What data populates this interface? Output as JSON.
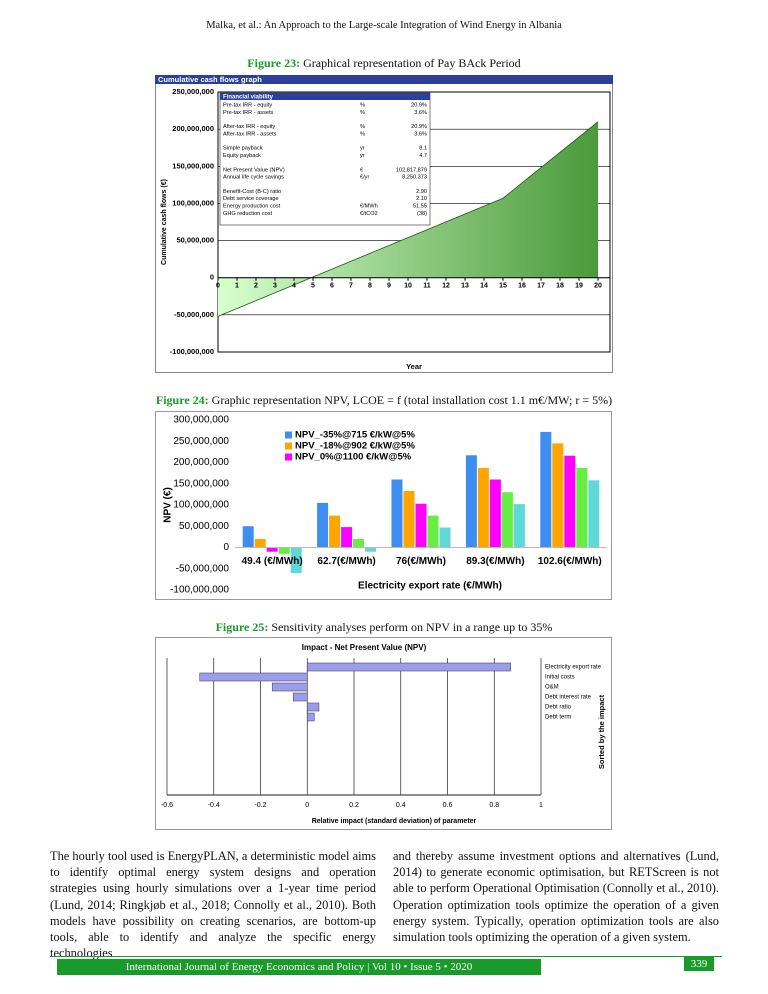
{
  "header": {
    "running_title": "Malka, et al.: An Approach to the Large-scale Integration of Wind Energy in Albania"
  },
  "figures": [
    {
      "label": "Figure 23:",
      "text": "Graphical representation of Pay BAck Period"
    },
    {
      "label": "Figure 24:",
      "text": "Graphic representation NPV, LCOE = f (total installation cost 1.1 m€/MW; r = 5%)"
    },
    {
      "label": "Figure 25:",
      "text": "Sensitivity analyses perform on NPV in a range up to 35%"
    }
  ],
  "chart_data": [
    {
      "type": "area",
      "title": "Cumulative cash flows graph",
      "x_label": "Year",
      "y_label": "Cumulative cash flows (€)",
      "x": [
        0,
        1,
        2,
        3,
        4,
        5,
        6,
        7,
        8,
        9,
        10,
        11,
        12,
        13,
        14,
        15,
        16,
        17,
        18,
        19,
        20
      ],
      "values": [
        -52000000,
        -41400000,
        -30800000,
        -20200000,
        -9600000,
        1000000,
        11600000,
        22200000,
        32800000,
        43400000,
        54000000,
        64600000,
        75200000,
        85800000,
        96400000,
        107000000,
        127600000,
        148200000,
        168800000,
        189400000,
        210000000
      ],
      "color": "#4a9a3a",
      "xlim": [
        0,
        20
      ],
      "xticks": [
        0,
        1,
        2,
        3,
        4,
        5,
        6,
        7,
        8,
        9,
        10,
        11,
        12,
        13,
        14,
        15,
        16,
        17,
        18,
        19,
        20
      ],
      "ylim": [
        -100000000,
        250000000
      ],
      "yticks": [
        {
          "value": -100000000,
          "label": "-100,000,000"
        },
        {
          "value": -50000000,
          "label": "-50,000,000"
        },
        0,
        {
          "value": 50000000,
          "label": "50,000,000"
        },
        {
          "value": 100000000,
          "label": "100,000,000"
        },
        {
          "value": 150000000,
          "label": "150,000,000"
        },
        {
          "value": 200000000,
          "label": "200,000,000"
        },
        {
          "value": 250000000,
          "label": "250,000,000"
        }
      ],
      "inset": {
        "title": "Financial viability",
        "rows": [
          {
            "label": "Pre-tax IRR - equity",
            "unit": "%",
            "value": "20.9%"
          },
          {
            "label": "Pre-tax IRR - assets",
            "unit": "%",
            "value": "3.6%"
          },
          {
            "label": "After-tax IRR - equity",
            "unit": "%",
            "value": "20.9%"
          },
          {
            "label": "After-tax IRR - assets",
            "unit": "%",
            "value": "3.6%"
          },
          {
            "label": "Simple payback",
            "unit": "yr",
            "value": "8.1"
          },
          {
            "label": "Equity payback",
            "unit": "yr",
            "value": "4.7"
          },
          {
            "label": "Net Present Value (NPV)",
            "unit": "€",
            "value": "102,817,879"
          },
          {
            "label": "Annual life cycle savings",
            "unit": "€/yr",
            "value": "8,250,373"
          },
          {
            "label": "Benefit-Cost (B-C) ratio",
            "value": "2.90"
          },
          {
            "label": "Debt service coverage",
            "value": "2.10"
          },
          {
            "label": "Energy production cost",
            "unit": "€/MWh",
            "value": "51.55"
          },
          {
            "label": "GHG reduction cost",
            "unit": "€/tCO2",
            "value": "(38)"
          }
        ]
      }
    },
    {
      "type": "bar",
      "x_label": "Electricity export rate (€/MWh)",
      "y_label": "NPV (€)",
      "categories": [
        "49.4 (€/MWh)",
        "62.7(€/MWh)",
        "76(€/MWh)",
        "89.3(€/MWh)",
        "102.6(€/MWh)"
      ],
      "series": [
        {
          "name": "NPV_-35%@715 €/kW@5%",
          "color": "#3d8ef0",
          "values": [
            50000000,
            105000000,
            160000000,
            217000000,
            272000000
          ]
        },
        {
          "name": "NPV_-18%@902 €/kW@5%",
          "color": "#ffa500",
          "values": [
            20000000,
            75000000,
            133000000,
            187000000,
            245000000
          ]
        },
        {
          "name": "NPV_0%@1100 €/kW@5%",
          "color": "#ff00ff",
          "values": [
            -10000000,
            48000000,
            103000000,
            160000000,
            216000000
          ]
        },
        {
          "color": "#66ee44",
          "values": [
            -15000000,
            20000000,
            75000000,
            130000000,
            187000000
          ]
        },
        {
          "color": "#5ed8d8",
          "values": [
            -60000000,
            -10000000,
            47000000,
            102000000,
            158000000
          ]
        }
      ],
      "ylim": [
        -100000000,
        300000000
      ],
      "yticks": [
        {
          "value": -100000000,
          "label": "-100,000,000"
        },
        {
          "value": -50000000,
          "label": "-50,000,000"
        },
        0,
        {
          "value": 50000000,
          "label": "50,000,000"
        },
        {
          "value": 100000000,
          "label": "100,000,000"
        },
        {
          "value": 150000000,
          "label": "150,000,000"
        },
        {
          "value": 200000000,
          "label": "200,000,000"
        },
        {
          "value": 250000000,
          "label": "250,000,000"
        },
        {
          "value": 300000000,
          "label": "300,000,000"
        }
      ]
    },
    {
      "type": "hbar",
      "title": "Impact - Net Present Value (NPV)",
      "x_label": "Relative impact (standard deviation) of parameter",
      "side_label": "Sorted by the impact",
      "categories": [
        "Electricity export rate",
        "Initial costs",
        "O&M",
        "Debt interest rate",
        "Debt ratio",
        "Debt term"
      ],
      "values": [
        0.87,
        -0.46,
        -0.15,
        -0.06,
        0.05,
        0.03
      ],
      "color": "#9c9cef",
      "xlim": [
        -0.6,
        1
      ],
      "xticks": [
        -0.6,
        -0.4,
        -0.2,
        0,
        0.2,
        0.4,
        0.6,
        0.8,
        1
      ],
      "grid": true
    }
  ],
  "body": {
    "columns": [
      "The hourly tool used is EnergyPLAN, a deterministic model aims to identify optimal energy system designs and operation strategies using hourly simulations over a 1-year time period (Lund, 2014; Ringkjøb et al., 2018; Connolly et al., 2010). Both models have possibility on creating scenarios, are bottom-up tools, able to identify and analyze the specific energy technologies",
      "and thereby assume investment options and alternatives (Lund, 2014) to generate economic optimisation, but RETScreen is not able to perform Operational Optimisation (Connolly et al., 2010). Operation optimization tools optimize the operation of a given energy system. Typically, operation optimization tools are also simulation tools optimizing the operation of a given system."
    ]
  },
  "footer": {
    "journal": "International Journal of Energy Economics and Policy | Vol 10 • Issue 5 • 2020",
    "page": "339"
  }
}
